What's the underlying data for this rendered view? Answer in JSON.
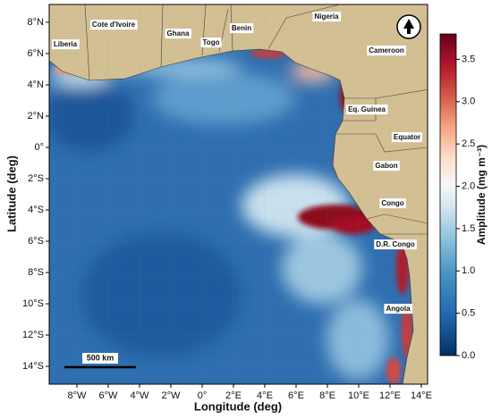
{
  "map": {
    "x_axis": {
      "label": "Longitude (deg)",
      "lim": [
        -9.77,
        14.4
      ],
      "ticks": [
        {
          "value": -8,
          "label": "8°W"
        },
        {
          "value": -6,
          "label": "6°W"
        },
        {
          "value": -4,
          "label": "4°W"
        },
        {
          "value": -2,
          "label": "2°W"
        },
        {
          "value": 0,
          "label": "0°"
        },
        {
          "value": 2,
          "label": "2°E"
        },
        {
          "value": 4,
          "label": "4°E"
        },
        {
          "value": 6,
          "label": "6°E"
        },
        {
          "value": 8,
          "label": "8°E"
        },
        {
          "value": 10,
          "label": "10°E"
        },
        {
          "value": 12,
          "label": "12°E"
        },
        {
          "value": 14,
          "label": "14°E"
        }
      ]
    },
    "y_axis": {
      "label": "Latitude (deg)",
      "lim": [
        -15.14,
        9.14
      ],
      "ticks": [
        {
          "value": 8,
          "label": "8°N"
        },
        {
          "value": 6,
          "label": "6°N"
        },
        {
          "value": 4,
          "label": "4°N"
        },
        {
          "value": 2,
          "label": "2°N"
        },
        {
          "value": 0,
          "label": "0°"
        },
        {
          "value": -2,
          "label": "2°S"
        },
        {
          "value": -4,
          "label": "4°S"
        },
        {
          "value": -6,
          "label": "6°S"
        },
        {
          "value": -8,
          "label": "8°S"
        },
        {
          "value": -10,
          "label": "10°S"
        },
        {
          "value": -12,
          "label": "12°S"
        },
        {
          "value": -14,
          "label": "14°S"
        }
      ]
    },
    "colorbar": {
      "label": "Amplitude (mg m⁻³)",
      "lim": [
        0,
        3.8
      ],
      "ticks": [
        {
          "value": 0,
          "label": "0.0"
        },
        {
          "value": 0.5,
          "label": "0.5"
        },
        {
          "value": 1,
          "label": "1.0"
        },
        {
          "value": 1.5,
          "label": "1.5"
        },
        {
          "value": 2,
          "label": "2.0"
        },
        {
          "value": 2.5,
          "label": "2.5"
        },
        {
          "value": 3,
          "label": "3.0"
        },
        {
          "value": 3.5,
          "label": "3.5"
        }
      ]
    },
    "scale_bar": "500 km",
    "countries": [
      "Liberia",
      "Cote d'Ivoire",
      "Ghana",
      "Togo",
      "Benin",
      "Nigeria",
      "Cameroon",
      "Eq. Guinea",
      "Equator",
      "Gabon",
      "Congo",
      "D.R. Congo",
      "Angola"
    ]
  }
}
